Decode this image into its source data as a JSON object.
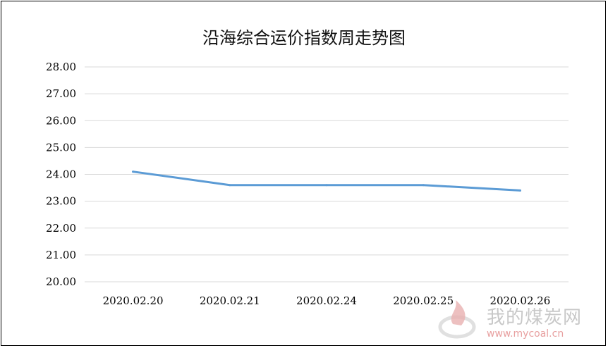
{
  "chart_data": {
    "type": "line",
    "title": "沿海综合运价指数周走势图",
    "categories": [
      "2020.02.20",
      "2020.02.21",
      "2020.02.24",
      "2020.02.25",
      "2020.02.26"
    ],
    "series": [
      {
        "values": [
          24.1,
          23.6,
          23.6,
          23.6,
          23.4
        ]
      }
    ],
    "ylim": [
      20,
      28
    ],
    "yticks": [
      "20.00",
      "21.00",
      "22.00",
      "23.00",
      "24.00",
      "25.00",
      "26.00",
      "27.00",
      "28.00"
    ],
    "grid": true,
    "line_color": "#5b9bd5",
    "grid_color": "#d9d9d9"
  },
  "watermark": {
    "text": "我的煤炭网",
    "url": "www.mycoal.cn",
    "logo": "flame-logo"
  }
}
